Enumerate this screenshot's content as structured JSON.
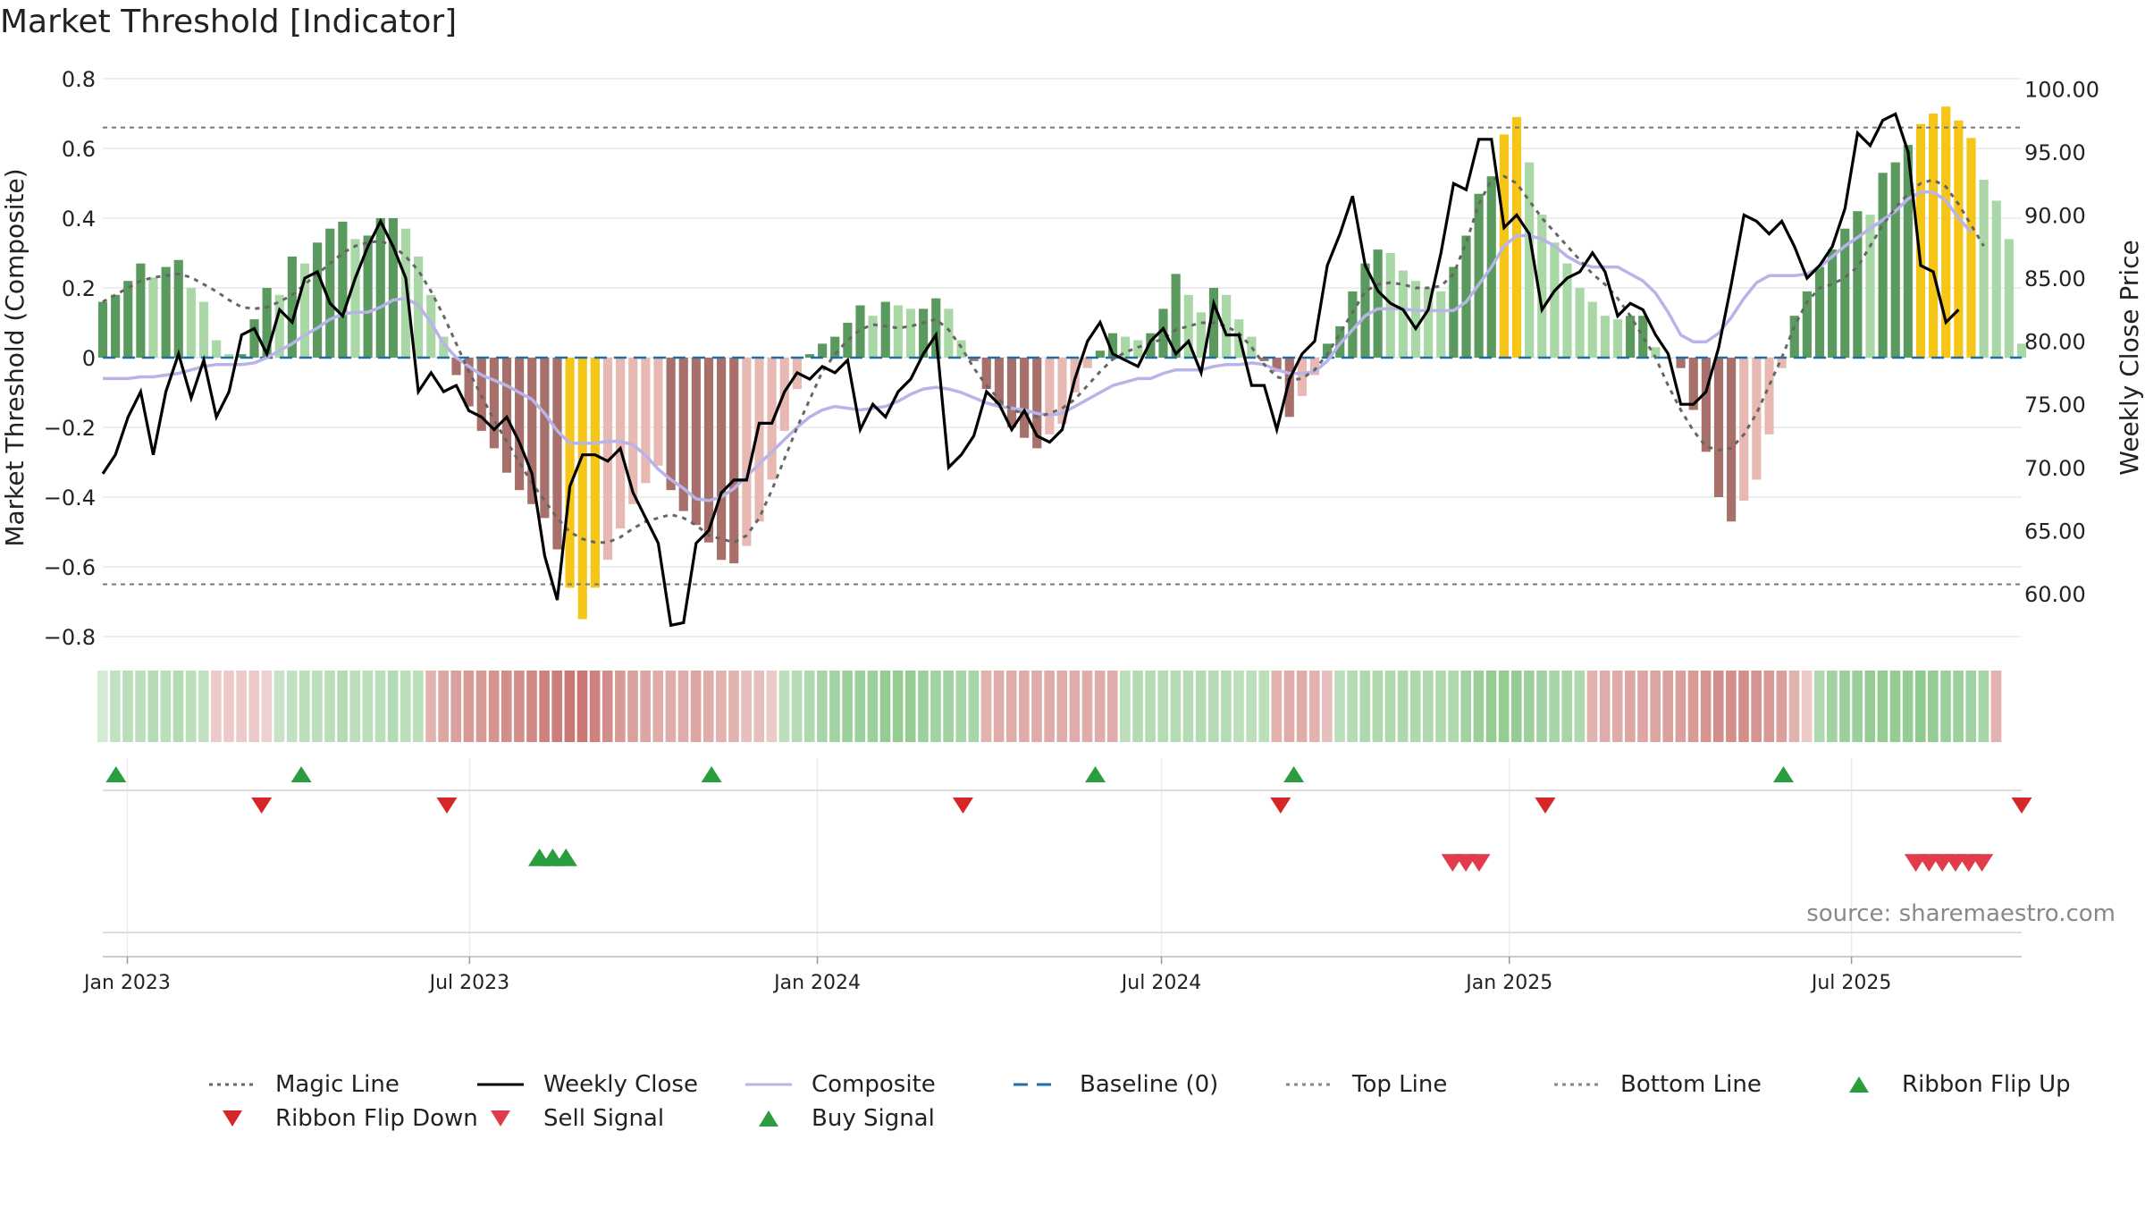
{
  "chart_data": {
    "type": "bar+line",
    "title": "Market Threshold [Indicator]",
    "source": "source: sharemaestro.com",
    "left_axis": {
      "label": "Market Threshold (Composite)",
      "ylim": [
        -0.8,
        0.8
      ],
      "ticks": [
        "0.8",
        "0.6",
        "0.4",
        "0.2",
        "0",
        "−0.2",
        "−0.4",
        "−0.6",
        "−0.8"
      ]
    },
    "right_axis": {
      "label": "Weekly Close Price",
      "ylim": [
        56.6,
        100.8
      ],
      "ticks": [
        "100.00",
        "95.00",
        "90.00",
        "85.00",
        "80.00",
        "75.00",
        "70.00",
        "65.00",
        "60.00"
      ]
    },
    "x_axis": {
      "start": "2022-12-19",
      "end": "2025-09-29",
      "tick_dates": [
        "2023-01-01",
        "2023-07-01",
        "2024-01-01",
        "2024-07-01",
        "2025-01-01",
        "2025-07-01"
      ],
      "tick_labels": [
        "Jan 2023",
        "Jul 2023",
        "Jan 2024",
        "Jul 2024",
        "Jan 2025",
        "Jul 2025"
      ]
    },
    "top_line": 0.66,
    "bottom_line": -0.65,
    "composite_bars": [
      0.16,
      0.18,
      0.22,
      0.27,
      0.23,
      0.26,
      0.28,
      0.2,
      0.16,
      0.05,
      0.01,
      0.01,
      0.11,
      0.2,
      0.18,
      0.29,
      0.27,
      0.33,
      0.37,
      0.39,
      0.34,
      0.35,
      0.4,
      0.4,
      0.37,
      0.29,
      0.18,
      0.06,
      -0.05,
      -0.14,
      -0.21,
      -0.26,
      -0.33,
      -0.38,
      -0.42,
      -0.46,
      -0.55,
      -0.66,
      -0.75,
      -0.66,
      -0.58,
      -0.49,
      -0.42,
      -0.36,
      -0.31,
      -0.38,
      -0.44,
      -0.48,
      -0.53,
      -0.58,
      -0.59,
      -0.54,
      -0.47,
      -0.35,
      -0.21,
      -0.09,
      0.01,
      0.04,
      0.06,
      0.1,
      0.15,
      0.12,
      0.16,
      0.15,
      0.14,
      0.14,
      0.17,
      0.14,
      0.05,
      -0.01,
      -0.09,
      -0.14,
      -0.2,
      -0.23,
      -0.26,
      -0.22,
      -0.19,
      -0.1,
      -0.03,
      0.02,
      0.07,
      0.06,
      0.05,
      0.07,
      0.14,
      0.24,
      0.18,
      0.13,
      0.2,
      0.18,
      0.11,
      0.06,
      -0.01,
      -0.04,
      -0.17,
      -0.11,
      -0.05,
      0.04,
      0.09,
      0.19,
      0.27,
      0.31,
      0.3,
      0.25,
      0.22,
      0.2,
      0.19,
      0.26,
      0.35,
      0.47,
      0.52,
      0.64,
      0.69,
      0.56,
      0.41,
      0.33,
      0.27,
      0.2,
      0.16,
      0.12,
      0.11,
      0.12,
      0.12,
      0.03,
      0.0,
      -0.03,
      -0.15,
      -0.27,
      -0.4,
      -0.47,
      -0.41,
      -0.35,
      -0.22,
      -0.03,
      0.12,
      0.19,
      0.26,
      0.31,
      0.37,
      0.42,
      0.41,
      0.53,
      0.56,
      0.61,
      0.67,
      0.7,
      0.72,
      0.68,
      0.63,
      0.51,
      0.45,
      0.34,
      0.04
    ],
    "bar_highlight_color": "#f5c518",
    "weekly_close": [
      69.5,
      71.0,
      74.0,
      76.0,
      71.0,
      76.0,
      79.0,
      75.5,
      78.5,
      74.0,
      76.0,
      80.5,
      81.0,
      79.0,
      82.5,
      81.5,
      85.0,
      85.5,
      83.0,
      82.0,
      85.0,
      87.5,
      89.5,
      87.5,
      85.0,
      76.0,
      77.5,
      76.0,
      76.5,
      74.5,
      74.0,
      73.0,
      74.0,
      72.0,
      69.5,
      63.0,
      59.5,
      68.5,
      71.0,
      71.0,
      70.5,
      71.5,
      68.0,
      66.0,
      64.0,
      57.5,
      57.7,
      64.0,
      65.0,
      68.0,
      69.0,
      69.0,
      73.5,
      73.5,
      76.0,
      77.5,
      77.0,
      78.0,
      77.5,
      78.5,
      73.0,
      75.0,
      74.0,
      76.0,
      77.0,
      79.0,
      80.5,
      70.0,
      71.0,
      72.5,
      76.0,
      75.0,
      73.0,
      74.5,
      72.5,
      72.0,
      73.0,
      77.0,
      80.0,
      81.5,
      79.0,
      78.5,
      78.0,
      80.0,
      81.0,
      79.0,
      80.0,
      77.5,
      83.0,
      80.5,
      80.5,
      76.5,
      76.5,
      73.0,
      77.0,
      79.0,
      80.0,
      86.0,
      88.5,
      91.5,
      86.0,
      84.0,
      83.0,
      82.5,
      81.0,
      82.5,
      87.0,
      92.5,
      92.0,
      96.0,
      96.0,
      89.0,
      90.0,
      88.5,
      82.5,
      84.0,
      85.0,
      85.5,
      87.0,
      85.5,
      82.0,
      83.0,
      82.5,
      80.5,
      79.0,
      75.0,
      75.0,
      76.0,
      79.5,
      84.5,
      90.0,
      89.5,
      88.5,
      89.5,
      87.5,
      85.0,
      86.0,
      87.5,
      90.5,
      96.5,
      95.5,
      97.5,
      98.0,
      95.0,
      86.0,
      85.5,
      81.5,
      82.5
    ],
    "composite": [
      -0.06,
      -0.06,
      -0.06,
      -0.055,
      -0.055,
      -0.05,
      -0.045,
      -0.035,
      -0.025,
      -0.02,
      -0.02,
      -0.02,
      -0.015,
      0.0,
      0.02,
      0.04,
      0.065,
      0.085,
      0.11,
      0.125,
      0.13,
      0.13,
      0.145,
      0.165,
      0.17,
      0.15,
      0.1,
      0.04,
      0.0,
      -0.025,
      -0.05,
      -0.065,
      -0.08,
      -0.1,
      -0.12,
      -0.16,
      -0.21,
      -0.245,
      -0.245,
      -0.245,
      -0.24,
      -0.24,
      -0.25,
      -0.28,
      -0.32,
      -0.35,
      -0.375,
      -0.405,
      -0.41,
      -0.4,
      -0.375,
      -0.34,
      -0.305,
      -0.27,
      -0.235,
      -0.2,
      -0.17,
      -0.15,
      -0.14,
      -0.145,
      -0.15,
      -0.145,
      -0.14,
      -0.125,
      -0.105,
      -0.09,
      -0.085,
      -0.09,
      -0.1,
      -0.115,
      -0.13,
      -0.14,
      -0.145,
      -0.15,
      -0.16,
      -0.165,
      -0.16,
      -0.14,
      -0.12,
      -0.1,
      -0.08,
      -0.07,
      -0.06,
      -0.06,
      -0.045,
      -0.035,
      -0.035,
      -0.035,
      -0.025,
      -0.02,
      -0.02,
      -0.015,
      -0.02,
      -0.035,
      -0.045,
      -0.045,
      -0.04,
      -0.01,
      0.04,
      0.08,
      0.12,
      0.14,
      0.14,
      0.14,
      0.135,
      0.135,
      0.135,
      0.135,
      0.16,
      0.21,
      0.26,
      0.32,
      0.35,
      0.35,
      0.34,
      0.32,
      0.29,
      0.27,
      0.26,
      0.26,
      0.26,
      0.24,
      0.22,
      0.185,
      0.13,
      0.065,
      0.045,
      0.045,
      0.07,
      0.115,
      0.17,
      0.215,
      0.235,
      0.235,
      0.235,
      0.24,
      0.26,
      0.29,
      0.32,
      0.345,
      0.37,
      0.395,
      0.42,
      0.455,
      0.475,
      0.475,
      0.45,
      0.4,
      0.36
    ],
    "magic_line": [
      0.16,
      0.18,
      0.2,
      0.22,
      0.23,
      0.235,
      0.24,
      0.23,
      0.21,
      0.19,
      0.165,
      0.145,
      0.14,
      0.145,
      0.16,
      0.18,
      0.21,
      0.24,
      0.27,
      0.3,
      0.32,
      0.33,
      0.335,
      0.32,
      0.29,
      0.25,
      0.19,
      0.12,
      0.04,
      -0.04,
      -0.11,
      -0.18,
      -0.24,
      -0.3,
      -0.36,
      -0.41,
      -0.46,
      -0.5,
      -0.52,
      -0.53,
      -0.53,
      -0.515,
      -0.49,
      -0.47,
      -0.46,
      -0.45,
      -0.46,
      -0.48,
      -0.51,
      -0.52,
      -0.53,
      -0.51,
      -0.46,
      -0.38,
      -0.29,
      -0.2,
      -0.12,
      -0.04,
      0.01,
      0.05,
      0.08,
      0.095,
      0.09,
      0.085,
      0.09,
      0.1,
      0.11,
      0.08,
      0.03,
      -0.03,
      -0.08,
      -0.12,
      -0.15,
      -0.16,
      -0.17,
      -0.16,
      -0.145,
      -0.12,
      -0.08,
      -0.04,
      -0.005,
      0.015,
      0.03,
      0.04,
      0.055,
      0.08,
      0.09,
      0.1,
      0.1,
      0.09,
      0.07,
      0.03,
      -0.02,
      -0.055,
      -0.065,
      -0.06,
      -0.035,
      0.01,
      0.07,
      0.13,
      0.19,
      0.21,
      0.215,
      0.21,
      0.2,
      0.2,
      0.205,
      0.24,
      0.33,
      0.44,
      0.51,
      0.52,
      0.5,
      0.45,
      0.4,
      0.36,
      0.32,
      0.28,
      0.24,
      0.21,
      0.17,
      0.12,
      0.06,
      0.0,
      -0.08,
      -0.15,
      -0.21,
      -0.255,
      -0.265,
      -0.26,
      -0.22,
      -0.16,
      -0.08,
      0.0,
      0.09,
      0.16,
      0.2,
      0.21,
      0.23,
      0.26,
      0.32,
      0.38,
      0.43,
      0.47,
      0.5,
      0.51,
      0.49,
      0.44,
      0.38,
      0.32
    ],
    "ribbon_values": [
      0.1,
      0.25,
      0.3,
      0.3,
      0.35,
      0.3,
      0.35,
      0.3,
      0.25,
      -0.1,
      -0.1,
      -0.1,
      -0.1,
      -0.05,
      0.2,
      0.25,
      0.3,
      0.3,
      0.3,
      0.35,
      0.3,
      0.3,
      0.3,
      0.35,
      0.3,
      0.3,
      -0.3,
      -0.4,
      -0.45,
      -0.5,
      -0.5,
      -0.55,
      -0.6,
      -0.6,
      -0.65,
      -0.7,
      -0.75,
      -0.8,
      -0.8,
      -0.7,
      -0.6,
      -0.5,
      -0.45,
      -0.4,
      -0.35,
      -0.35,
      -0.35,
      -0.4,
      -0.35,
      -0.3,
      -0.3,
      -0.2,
      -0.2,
      -0.1,
      0.3,
      0.35,
      0.4,
      0.45,
      0.5,
      0.55,
      0.55,
      0.55,
      0.6,
      0.6,
      0.6,
      0.55,
      0.5,
      0.5,
      0.45,
      0.45,
      -0.3,
      -0.35,
      -0.35,
      -0.35,
      -0.35,
      -0.35,
      -0.35,
      -0.35,
      -0.35,
      -0.35,
      -0.35,
      0.3,
      0.35,
      0.35,
      0.35,
      0.35,
      0.35,
      0.35,
      0.35,
      0.35,
      0.3,
      0.3,
      0.3,
      -0.3,
      -0.35,
      -0.35,
      -0.3,
      -0.2,
      0.3,
      0.35,
      0.4,
      0.4,
      0.4,
      0.4,
      0.4,
      0.4,
      0.4,
      0.4,
      0.5,
      0.55,
      0.6,
      0.6,
      0.6,
      0.55,
      0.5,
      0.45,
      0.45,
      0.4,
      -0.3,
      -0.35,
      -0.35,
      -0.4,
      -0.4,
      -0.4,
      -0.45,
      -0.45,
      -0.5,
      -0.55,
      -0.6,
      -0.6,
      -0.6,
      -0.55,
      -0.5,
      -0.45,
      -0.3,
      -0.1,
      0.4,
      0.5,
      0.55,
      0.55,
      0.6,
      0.6,
      0.6,
      0.6,
      0.65,
      0.6,
      0.55,
      0.55,
      0.5,
      0.45,
      -0.3
    ],
    "ribbon_flip_up": [
      "2022-12-26",
      "2023-04-03",
      "2023-11-06",
      "2024-05-27",
      "2024-09-09",
      "2025-05-26"
    ],
    "ribbon_flip_down": [
      "2023-03-13",
      "2023-06-19",
      "2024-03-18",
      "2024-09-02",
      "2025-01-20",
      "2025-09-29"
    ],
    "buy_signal": [
      "2023-08-07",
      "2023-08-14",
      "2023-08-21"
    ],
    "sell_signal": [
      "2024-12-02",
      "2024-12-09",
      "2024-12-16",
      "2025-08-04",
      "2025-08-11",
      "2025-08-18",
      "2025-08-25",
      "2025-09-01",
      "2025-09-08"
    ],
    "legend": [
      {
        "label": "Magic Line",
        "style": "dotted",
        "color": "#666666"
      },
      {
        "label": "Weekly Close",
        "style": "solid",
        "color": "#000000"
      },
      {
        "label": "Composite",
        "style": "solid",
        "color": "#b9b4e8"
      },
      {
        "label": "Baseline (0)",
        "style": "dashed",
        "color": "#1f6fa8"
      },
      {
        "label": "Top Line",
        "style": "dotted",
        "color": "#888888"
      },
      {
        "label": "Bottom Line",
        "style": "dotted",
        "color": "#888888"
      },
      {
        "label": "Ribbon Flip Up",
        "style": "triangle-up",
        "color": "#2a9d3f"
      },
      {
        "label": "Ribbon Flip Down",
        "style": "triangle-down",
        "color": "#d62728"
      },
      {
        "label": "Sell Signal",
        "style": "triangle-down",
        "color": "#e03c4a"
      },
      {
        "label": "Buy Signal",
        "style": "triangle-up",
        "color": "#2a9d3f"
      }
    ]
  }
}
